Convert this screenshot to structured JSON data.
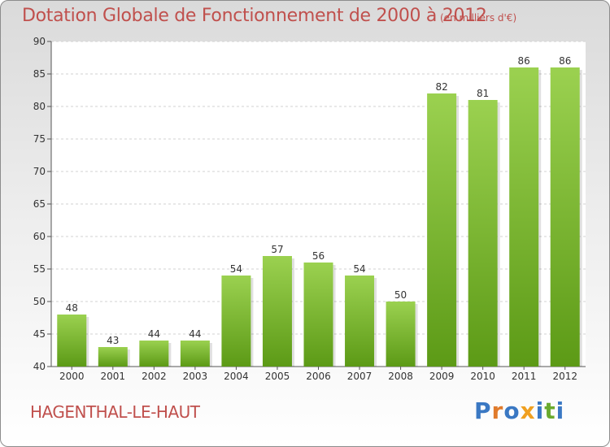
{
  "header": {
    "title": "Dotation Globale de Fonctionnement de 2000 à 2012",
    "unit": "(en milliers d'€)"
  },
  "footer": {
    "commune": "HAGENTHAL-LE-HAUT",
    "logo": {
      "text": "Proxiti",
      "letters": [
        {
          "char": "P",
          "color": "#3a78c3"
        },
        {
          "char": "r",
          "color": "#e07b2c"
        },
        {
          "char": "o",
          "color": "#3a78c3"
        },
        {
          "char": "x",
          "color": "#f0a020"
        },
        {
          "char": "i",
          "color": "#3a78c3"
        },
        {
          "char": "t",
          "color": "#6aaa2e"
        },
        {
          "char": "i",
          "color": "#3a78c3"
        }
      ]
    }
  },
  "chart_data": {
    "type": "bar",
    "title": "Dotation Globale de Fonctionnement de 2000 à 2012",
    "subtitle": "(en milliers d'€)",
    "xlabel": "",
    "ylabel": "",
    "categories": [
      "2000",
      "2001",
      "2002",
      "2003",
      "2004",
      "2005",
      "2006",
      "2007",
      "2008",
      "2009",
      "2010",
      "2011",
      "2012"
    ],
    "values": [
      48,
      43,
      44,
      44,
      54,
      57,
      56,
      54,
      50,
      82,
      81,
      86,
      86
    ],
    "ylim": [
      40,
      90
    ],
    "yticks": [
      40,
      45,
      50,
      55,
      60,
      65,
      70,
      75,
      80,
      85,
      90
    ],
    "grid": true,
    "bar_color_top": "#9bd150",
    "bar_color_bottom": "#5c9a16",
    "title_color": "#c0504d"
  }
}
